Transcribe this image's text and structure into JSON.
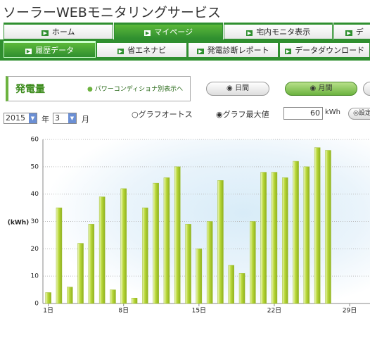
{
  "header": {
    "title": "ソーラーWEBモニタリングサービス"
  },
  "nav": {
    "main": [
      "ホーム",
      "マイページ",
      "宅内モニタ表示",
      "デ"
    ],
    "sub": [
      "履歴データ",
      "省エネナビ",
      "発電診断レポート",
      "データダウンロード"
    ]
  },
  "panel": {
    "title": "発電量",
    "link": "パワーコンディショナ別表示へ",
    "periods": [
      "日間",
      "月間"
    ]
  },
  "controls": {
    "year": 2015,
    "year_unit": "年",
    "month": 3,
    "month_unit": "月",
    "auto_scale": "グラフオートス",
    "max_value": "グラフ最大値",
    "max_input": 60,
    "max_unit": "kWh",
    "set_button": "設定"
  },
  "chart_data": {
    "type": "bar",
    "ylabel": "(kWh)",
    "x": [
      1,
      2,
      3,
      4,
      5,
      6,
      7,
      8,
      9,
      10,
      11,
      12,
      13,
      14,
      15,
      16,
      17,
      18,
      19,
      20,
      21,
      22,
      23,
      24,
      25,
      26,
      27
    ],
    "values": [
      4,
      35,
      6,
      22,
      29,
      39,
      5,
      42,
      2,
      35,
      44,
      46,
      50,
      29,
      20,
      30,
      45,
      14,
      11,
      30,
      48,
      48,
      46,
      52,
      50,
      57,
      56
    ],
    "color": "#b8d838",
    "xlim": [
      0.5,
      31.5
    ],
    "xticks": [
      {
        "value": 1,
        "label": "1日"
      },
      {
        "value": 8,
        "label": "8日"
      },
      {
        "value": 15,
        "label": "15日"
      },
      {
        "value": 22,
        "label": "22日"
      },
      {
        "value": 29,
        "label": "29日"
      }
    ],
    "ylim": [
      0,
      60
    ],
    "yticks": [
      0,
      10,
      20,
      30,
      40,
      50,
      60
    ],
    "grid": true
  }
}
